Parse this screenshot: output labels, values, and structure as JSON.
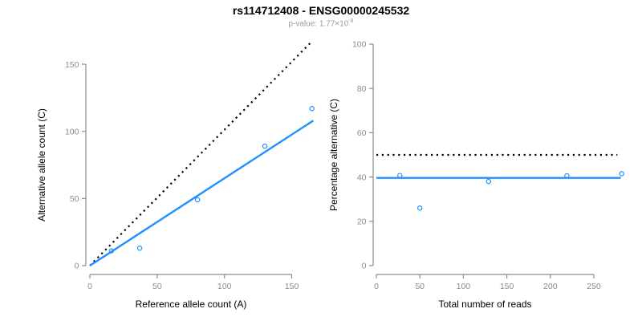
{
  "header": {
    "title": "rs114712408 - ENSG00000245532",
    "p_value_label": "p-value: ",
    "p_value_mantissa": "1.77×10",
    "p_value_exponent": "-8"
  },
  "colors": {
    "accent_blue": "#1E90FF",
    "axis_gray": "#8C8C8C",
    "line_black": "#000000",
    "subtitle_gray": "#9a9a9a"
  },
  "chart_data": [
    {
      "type": "scatter",
      "title": "",
      "xlabel": "Reference allele count (A)",
      "ylabel": "Alternative allele count (C)",
      "xticks": [
        0,
        50,
        100,
        150
      ],
      "yticks": [
        0,
        50,
        100,
        150
      ],
      "xlim": [
        0,
        166
      ],
      "ylim": [
        0,
        167
      ],
      "grid": false,
      "legend": false,
      "points": [
        [
          16,
          11
        ],
        [
          37,
          13
        ],
        [
          80,
          49
        ],
        [
          130,
          89
        ],
        [
          165,
          117
        ]
      ],
      "lines": [
        {
          "name": "identity-line",
          "style": "dotted",
          "color": "#000000",
          "from": [
            0,
            0
          ],
          "to": [
            164,
            166
          ]
        },
        {
          "name": "fit-line",
          "style": "solid",
          "color": "#1E90FF",
          "from": [
            0,
            0
          ],
          "to": [
            166,
            108
          ]
        }
      ]
    },
    {
      "type": "scatter",
      "title": "",
      "xlabel": "Total number of reads",
      "ylabel": "Percentage alternative (C)",
      "xticks": [
        0,
        50,
        100,
        150,
        200,
        250
      ],
      "yticks": [
        0,
        20,
        40,
        60,
        80,
        100
      ],
      "xlim": [
        0,
        282
      ],
      "ylim": [
        0,
        100
      ],
      "grid": false,
      "legend": false,
      "points": [
        [
          27,
          40.7
        ],
        [
          50,
          26
        ],
        [
          129,
          38
        ],
        [
          219,
          40.6
        ],
        [
          282,
          41.5
        ]
      ],
      "lines": [
        {
          "name": "expected-50pct-line",
          "style": "dotted",
          "color": "#000000",
          "from": [
            0,
            50
          ],
          "to": [
            277,
            50
          ]
        },
        {
          "name": "fit-line",
          "style": "solid",
          "color": "#1E90FF",
          "from": [
            0,
            39.6
          ],
          "to": [
            281,
            39.6
          ]
        }
      ]
    }
  ]
}
